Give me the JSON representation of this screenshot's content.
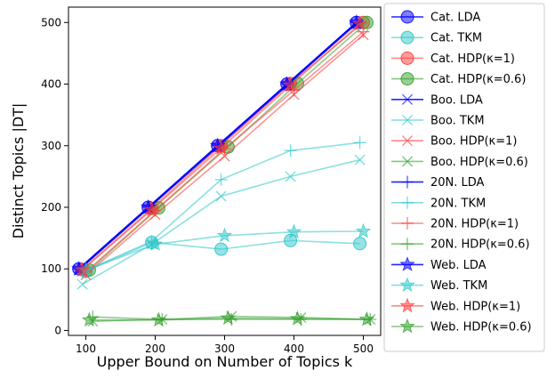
{
  "chart_data": {
    "type": "line",
    "title": "",
    "xlabel": "Upper Bound on Number of Topics k",
    "ylabel": "Distinct Topics |DT|",
    "xlim": [
      75,
      525
    ],
    "ylim": [
      -8,
      525
    ],
    "xticks": [
      100,
      200,
      300,
      400,
      500
    ],
    "yticks": [
      0,
      100,
      200,
      300,
      400,
      500
    ],
    "grid": false,
    "legend_position": "outside-right",
    "colors": {
      "LDA": "#0000ff",
      "TKM": "#2ec7c9",
      "HDP1": "#ff3b3b",
      "HDP06": "#33a02c"
    },
    "series": [
      {
        "name": "Cat. LDA",
        "color": "LDA",
        "marker": "circle",
        "x": [
          90,
          190,
          290,
          390,
          490
        ],
        "y": [
          100,
          200,
          300,
          400,
          500
        ]
      },
      {
        "name": "Cat. TKM",
        "color": "TKM",
        "marker": "circle",
        "x": [
          100,
          195,
          295,
          395,
          495
        ],
        "y": [
          96,
          143,
          132,
          146,
          141
        ]
      },
      {
        "name": "Cat. HDP(κ=1)",
        "color": "HDP1",
        "marker": "circle",
        "x": [
          95,
          195,
          295,
          395,
          500
        ],
        "y": [
          99,
          198,
          300,
          401,
          500
        ]
      },
      {
        "name": "Cat. HDP(κ=0.6)",
        "color": "HDP06",
        "marker": "circle",
        "x": [
          105,
          205,
          305,
          405,
          505
        ],
        "y": [
          98,
          199,
          298,
          401,
          500
        ]
      },
      {
        "name": "Boo. LDA",
        "color": "LDA",
        "marker": "x",
        "x": [
          90,
          190,
          290,
          390,
          490
        ],
        "y": [
          98,
          198,
          298,
          398,
          498
        ]
      },
      {
        "name": "Boo. TKM",
        "color": "TKM",
        "marker": "x",
        "x": [
          95,
          195,
          295,
          395,
          495
        ],
        "y": [
          75,
          140,
          218,
          250,
          277
        ]
      },
      {
        "name": "Boo. HDP(κ=1)",
        "color": "HDP1",
        "marker": "x",
        "x": [
          100,
          200,
          300,
          400,
          500
        ],
        "y": [
          90,
          188,
          283,
          383,
          480
        ]
      },
      {
        "name": "Boo. HDP(κ=0.6)",
        "color": "HDP06",
        "marker": "x",
        "x": [
          110,
          210,
          310,
          410,
          510
        ],
        "y": [
          15,
          18,
          23,
          21,
          18
        ]
      },
      {
        "name": "20N. LDA",
        "color": "LDA",
        "marker": "plus",
        "x": [
          90,
          190,
          290,
          390,
          490
        ],
        "y": [
          100,
          200,
          300,
          400,
          500
        ]
      },
      {
        "name": "20N. TKM",
        "color": "TKM",
        "marker": "plus",
        "x": [
          95,
          195,
          295,
          395,
          495
        ],
        "y": [
          95,
          145,
          245,
          292,
          305
        ]
      },
      {
        "name": "20N. HDP(κ=1)",
        "color": "HDP1",
        "marker": "plus",
        "x": [
          100,
          200,
          300,
          400,
          500
        ],
        "y": [
          95,
          195,
          295,
          390,
          485
        ]
      },
      {
        "name": "20N. HDP(κ=0.6)",
        "color": "HDP06",
        "marker": "plus",
        "x": [
          110,
          210,
          310,
          410,
          510
        ],
        "y": [
          22,
          18,
          18,
          18,
          18
        ]
      },
      {
        "name": "Web. LDA",
        "color": "LDA",
        "marker": "star",
        "x": [
          90,
          190,
          290,
          390,
          490
        ],
        "y": [
          100,
          200,
          300,
          400,
          500
        ]
      },
      {
        "name": "Web. TKM",
        "color": "TKM",
        "marker": "star",
        "x": [
          100,
          200,
          300,
          400,
          500
        ],
        "y": [
          98,
          140,
          154,
          160,
          161
        ]
      },
      {
        "name": "Web. HDP(κ=1)",
        "color": "HDP1",
        "marker": "star",
        "x": [
          95,
          195,
          295,
          395,
          495
        ],
        "y": [
          98,
          196,
          296,
          398,
          498
        ]
      },
      {
        "name": "Web. HDP(κ=0.6)",
        "color": "HDP06",
        "marker": "star",
        "x": [
          105,
          205,
          305,
          405,
          505
        ],
        "y": [
          17,
          17,
          20,
          19,
          18
        ]
      }
    ]
  }
}
